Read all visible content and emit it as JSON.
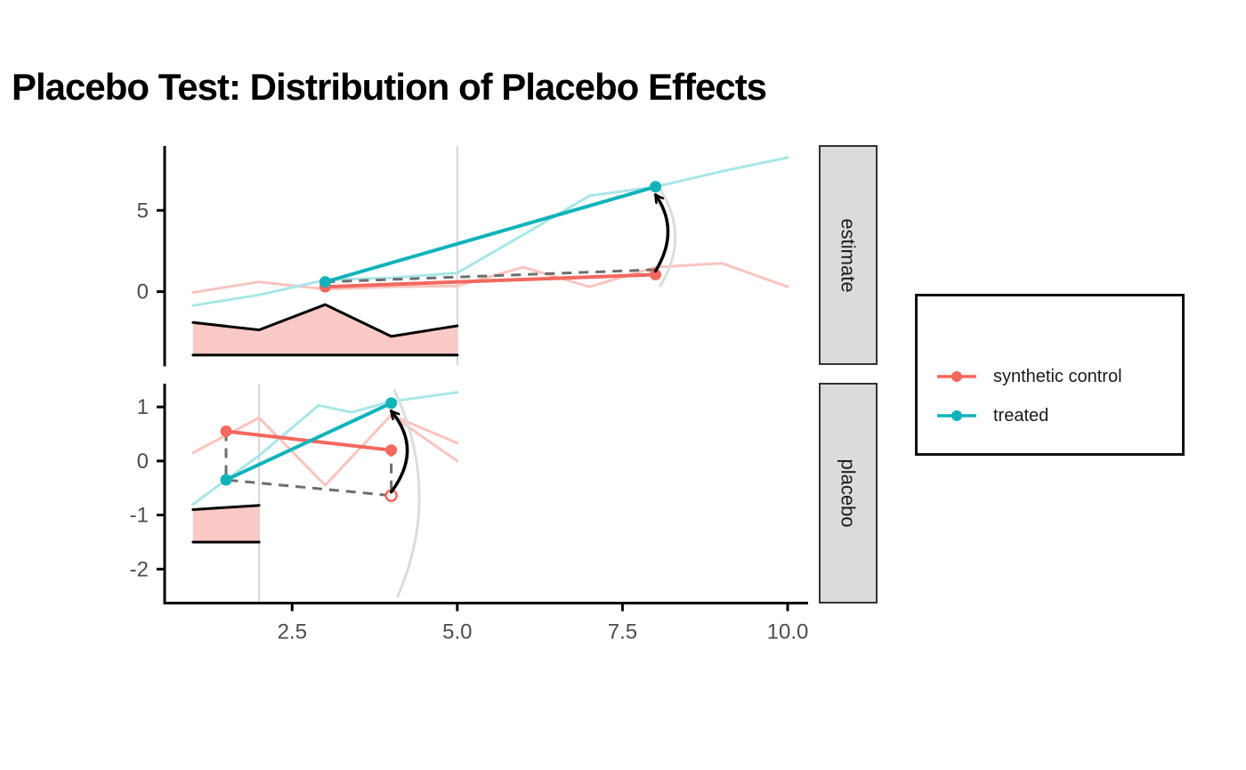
{
  "title": "Placebo Test: Distribution of Placebo Effects",
  "colors": {
    "control": "#f4685e",
    "control_faint": "#fac4be",
    "treated": "#10b3ba",
    "treated_faint": "#a9e6e7",
    "density_fill": "#f9c9c5",
    "density_stroke": "#000000",
    "dashed": "#6e6e6e",
    "ghost": "#dcdcdc",
    "vline": "#d6d6d6",
    "axis": "#000000",
    "tick_text": "#4d4d4d",
    "arrow": "#000000",
    "strip_fill": "#dbdbdb",
    "strip_border": "#333333"
  },
  "legend": {
    "entries": [
      {
        "label": "synthetic control",
        "color_key": "control"
      },
      {
        "label": "treated",
        "color_key": "treated"
      }
    ]
  },
  "chart_data": {
    "type": "line",
    "title": "Placebo Test: Distribution of Placebo Effects",
    "xlabel": "",
    "ylabel": "",
    "x_axis": {
      "range": [
        0.57,
        10.31
      ],
      "ticks": [
        2.5,
        5.0,
        7.5,
        10.0
      ],
      "tick_labels": [
        "2.5",
        "5.0",
        "7.5",
        "10.0"
      ]
    },
    "facets": [
      {
        "label": "estimate",
        "y_axis": {
          "range": [
            -4.51,
            8.96
          ],
          "ticks": [
            5,
            0
          ],
          "tick_labels": [
            "5",
            "0"
          ]
        },
        "vline_x": 5,
        "density": {
          "x": [
            1,
            2,
            3,
            4,
            5
          ],
          "top": [
            -1.9,
            -2.35,
            -0.8,
            -2.75,
            -2.1
          ],
          "baseline": -3.9
        },
        "series": {
          "raw_control": [
            [
              1,
              -0.05
            ],
            [
              2,
              0.6
            ],
            [
              3,
              0.15
            ],
            [
              4,
              0.3
            ],
            [
              5,
              0.35
            ],
            [
              6,
              1.5
            ],
            [
              7,
              0.3
            ],
            [
              8,
              1.5
            ],
            [
              9,
              1.75
            ],
            [
              10,
              0.3
            ]
          ],
          "raw_treated": [
            [
              1,
              -0.85
            ],
            [
              2,
              -0.2
            ],
            [
              3,
              0.72
            ],
            [
              4,
              0.85
            ],
            [
              5,
              1.15
            ],
            [
              6,
              3.5
            ],
            [
              7,
              5.9
            ],
            [
              8,
              6.45
            ],
            [
              9,
              7.4
            ],
            [
              10,
              8.25
            ]
          ],
          "synthetic_control": [
            [
              3,
              0.3
            ],
            [
              8,
              1.05
            ]
          ],
          "treated": [
            [
              3,
              0.6
            ],
            [
              8,
              6.45
            ]
          ],
          "counterfactual_dashed": [
            [
              3,
              0.6
            ],
            [
              8,
              1.35
            ]
          ]
        },
        "points": {
          "control": [
            [
              3,
              0.3
            ],
            [
              8,
              1.05
            ]
          ],
          "treated": [
            [
              3,
              0.6
            ],
            [
              8,
              6.45
            ]
          ],
          "open": []
        },
        "arrow": {
          "from": [
            8,
            1.05
          ],
          "to": [
            8,
            6.45
          ]
        },
        "ghost_arrow": {
          "from": [
            8.07,
            0.35
          ],
          "to": [
            8.07,
            6.3
          ]
        }
      },
      {
        "label": "placebo",
        "y_axis": {
          "range": [
            -2.62,
            1.43
          ],
          "ticks": [
            1,
            0,
            -1,
            -2
          ],
          "tick_labels": [
            "1",
            "0",
            "-1",
            "-2"
          ]
        },
        "vline_x": 2,
        "density": {
          "x": [
            1,
            2
          ],
          "top": [
            -0.9,
            -0.82
          ],
          "baseline": -1.5
        },
        "series": {
          "raw_control": [
            [
              1,
              0.15
            ],
            [
              2,
              0.8
            ],
            [
              3,
              -0.45
            ],
            [
              4,
              0.85
            ],
            [
              5,
              0.33
            ]
          ],
          "raw_control2": [
            [
              4,
              0.85
            ],
            [
              5,
              0.0
            ]
          ],
          "raw_treated": [
            [
              1,
              -0.8
            ],
            [
              2,
              0.1
            ],
            [
              2.9,
              1.03
            ],
            [
              3.4,
              0.9
            ],
            [
              4,
              1.1
            ],
            [
              5,
              1.27
            ]
          ],
          "synthetic_control": [
            [
              1.5,
              0.55
            ],
            [
              4,
              0.2
            ]
          ],
          "treated": [
            [
              1.5,
              -0.35
            ],
            [
              4,
              1.07
            ]
          ],
          "counterfactual_dashed": [
            [
              1.5,
              0.55
            ],
            [
              1.5,
              -0.35
            ],
            [
              4,
              -0.64
            ],
            [
              4,
              0.2
            ]
          ]
        },
        "points": {
          "control": [
            [
              1.5,
              0.55
            ],
            [
              4,
              0.2
            ]
          ],
          "treated": [
            [
              1.5,
              -0.35
            ],
            [
              4,
              1.07
            ]
          ],
          "open": [
            [
              4,
              -0.64
            ]
          ]
        },
        "arrow": {
          "from": [
            4,
            -0.64
          ],
          "to": [
            4,
            1.07
          ]
        },
        "ghost_arrow": {
          "from": [
            4.1,
            -2.5
          ],
          "to": [
            4.05,
            1.3
          ]
        }
      }
    ]
  }
}
